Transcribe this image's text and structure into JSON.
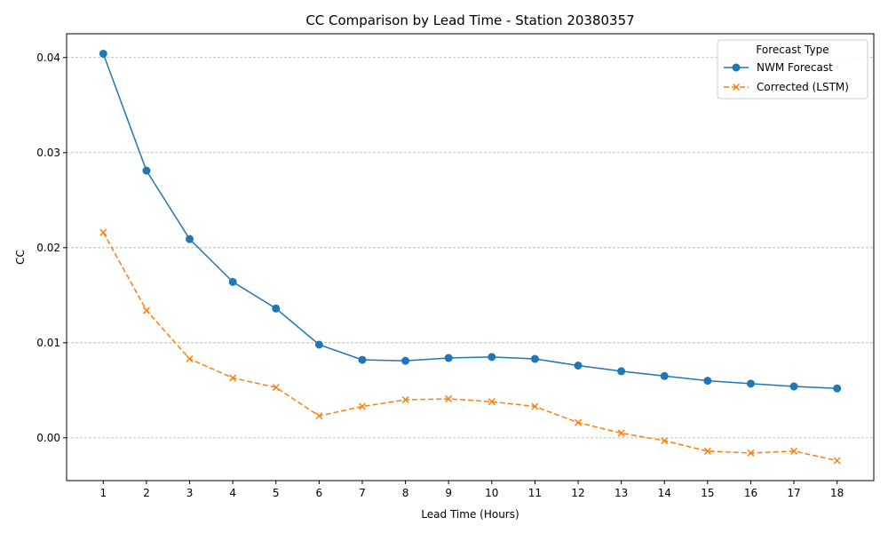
{
  "chart_data": {
    "type": "line",
    "title": "CC Comparison by Lead Time - Station 20380357",
    "xlabel": "Lead Time (Hours)",
    "ylabel": "CC",
    "x": [
      1,
      2,
      3,
      4,
      5,
      6,
      7,
      8,
      9,
      10,
      11,
      12,
      13,
      14,
      15,
      16,
      17,
      18
    ],
    "ylim": [
      -0.0045,
      0.0425
    ],
    "yticks": [
      0.0,
      0.01,
      0.02,
      0.03,
      0.04
    ],
    "ytick_labels": [
      "0.00",
      "0.01",
      "0.02",
      "0.03",
      "0.04"
    ],
    "grid": "y-dashed",
    "legend": {
      "title": "Forecast Type",
      "placement": "top-right"
    },
    "series": [
      {
        "name": "NWM Forecast",
        "color": "#1f77b4",
        "marker": "circle",
        "linestyle": "solid",
        "values": [
          0.0404,
          0.0281,
          0.0209,
          0.0164,
          0.0136,
          0.0098,
          0.0082,
          0.0081,
          0.0084,
          0.0085,
          0.0083,
          0.0076,
          0.007,
          0.0065,
          0.006,
          0.0057,
          0.0054,
          0.0052
        ]
      },
      {
        "name": "Corrected (LSTM)",
        "color": "#ff7f0e",
        "marker": "x",
        "linestyle": "dashed",
        "values": [
          0.0216,
          0.0134,
          0.0083,
          0.0063,
          0.0053,
          0.0023,
          0.0033,
          0.004,
          0.0041,
          0.0038,
          0.0033,
          0.0016,
          0.0005,
          -0.0003,
          -0.0014,
          -0.0016,
          -0.0014,
          -0.0024
        ]
      }
    ]
  }
}
